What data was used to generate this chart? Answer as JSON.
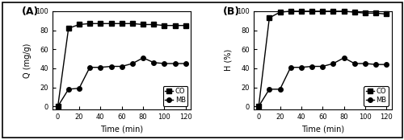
{
  "time": [
    0,
    10,
    20,
    30,
    40,
    50,
    60,
    70,
    80,
    90,
    100,
    110,
    120
  ],
  "Q_CO": [
    0,
    82,
    86,
    87,
    87,
    87,
    87,
    87,
    86,
    86,
    85,
    85,
    85
  ],
  "Q_MB": [
    0,
    18,
    19,
    41,
    41,
    42,
    42,
    45,
    51,
    46,
    45,
    45,
    45
  ],
  "H_CO": [
    0,
    93,
    99,
    100,
    100,
    100,
    100,
    100,
    100,
    99,
    98,
    98,
    97
  ],
  "H_MB": [
    0,
    18,
    18,
    41,
    41,
    42,
    42,
    45,
    51,
    45,
    45,
    44,
    44
  ],
  "ylabel_A": "Q (mg/g)",
  "ylabel_B": "H (%)",
  "xlabel": "Time (min)",
  "label_A": "(A)",
  "label_B": "(B)",
  "legend_CO": "CO",
  "legend_MB": "MB",
  "ylim_A": [
    -3,
    100
  ],
  "ylim_B": [
    -3,
    100
  ],
  "yticks_A": [
    0,
    20,
    40,
    60,
    80,
    100
  ],
  "yticks_B": [
    0,
    20,
    40,
    60,
    80,
    100
  ],
  "xticks": [
    0,
    20,
    40,
    60,
    80,
    100,
    120
  ],
  "xlim": [
    -5,
    125
  ],
  "color_line": "#000000",
  "marker_CO": "s",
  "marker_MB": "o",
  "markersize": 4,
  "linewidth": 1.0,
  "outer_border_color": "#000000"
}
